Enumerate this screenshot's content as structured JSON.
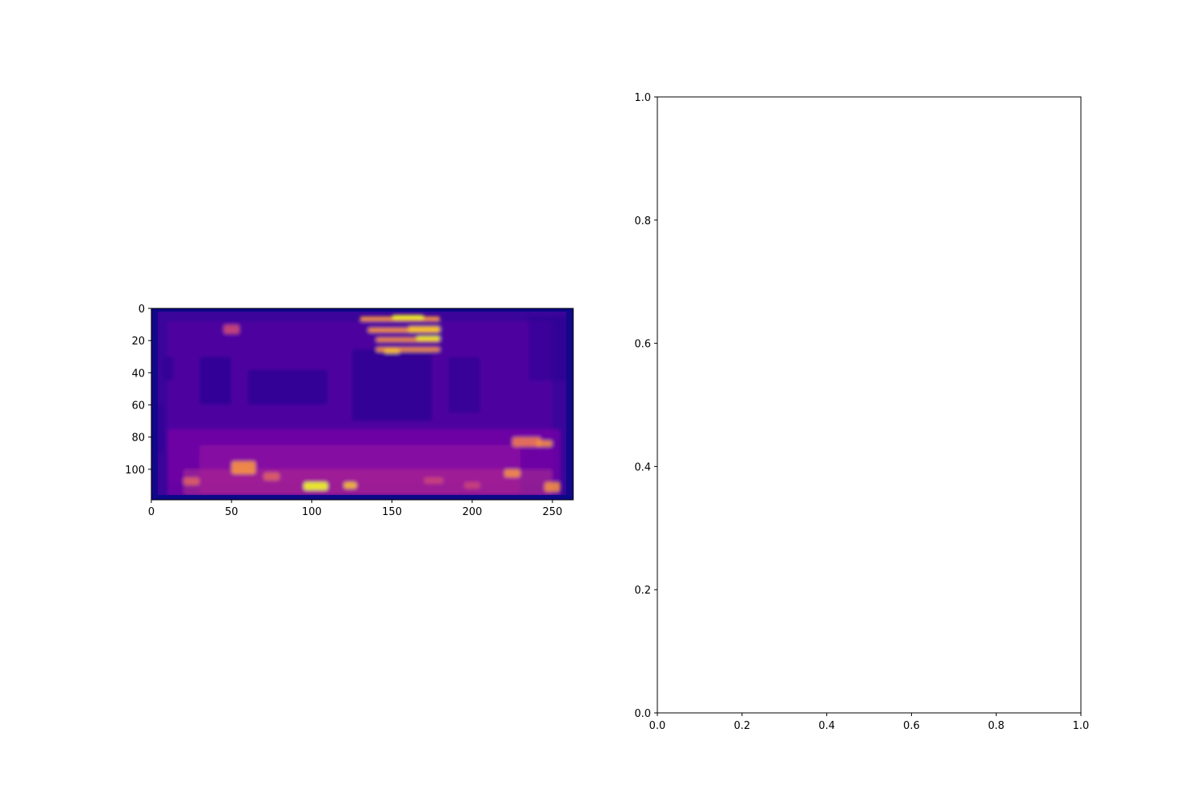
{
  "chart_data": [
    {
      "type": "heatmap",
      "title": "",
      "xlabel": "",
      "ylabel": "",
      "xlim": [
        0,
        263
      ],
      "ylim": [
        119,
        0
      ],
      "colormap": "plasma",
      "grid": false,
      "xticks": [
        0,
        50,
        100,
        150,
        200,
        250
      ],
      "xtick_labels": [
        "0",
        "50",
        "100",
        "150",
        "200",
        "250"
      ],
      "yticks": [
        0,
        20,
        40,
        60,
        80,
        100
      ],
      "ytick_labels": [
        "0",
        "20",
        "40",
        "60",
        "80",
        "100"
      ],
      "colors": {
        "background": "#3b049a",
        "frame": "#0d0887",
        "base": "#5c01a6",
        "mid": "#9c179e",
        "warm": "#cc4778",
        "hot": "#f0f921"
      }
    },
    {
      "type": "line",
      "title": "",
      "xlabel": "",
      "ylabel": "",
      "xlim": [
        0,
        1
      ],
      "ylim": [
        0,
        1
      ],
      "grid": false,
      "series": [],
      "xticks": [
        0.0,
        0.2,
        0.4,
        0.6,
        0.8,
        1.0
      ],
      "xtick_labels": [
        "0.0",
        "0.2",
        "0.4",
        "0.6",
        "0.8",
        "1.0"
      ],
      "yticks": [
        0.0,
        0.2,
        0.4,
        0.6,
        0.8,
        1.0
      ],
      "ytick_labels": [
        "0.0",
        "0.2",
        "0.4",
        "0.6",
        "0.8",
        "1.0"
      ]
    }
  ]
}
